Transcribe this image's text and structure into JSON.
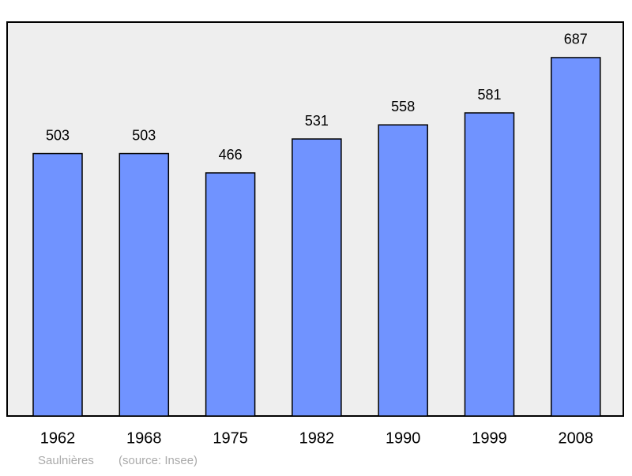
{
  "chart_data": {
    "type": "bar",
    "categories": [
      "1962",
      "1968",
      "1975",
      "1982",
      "1990",
      "1999",
      "2008"
    ],
    "values": [
      503,
      503,
      466,
      531,
      558,
      581,
      687
    ],
    "color": "#7093ff",
    "ylim": [
      0,
      755
    ],
    "caption": "Saulnières",
    "source": "(source: Insee)"
  }
}
